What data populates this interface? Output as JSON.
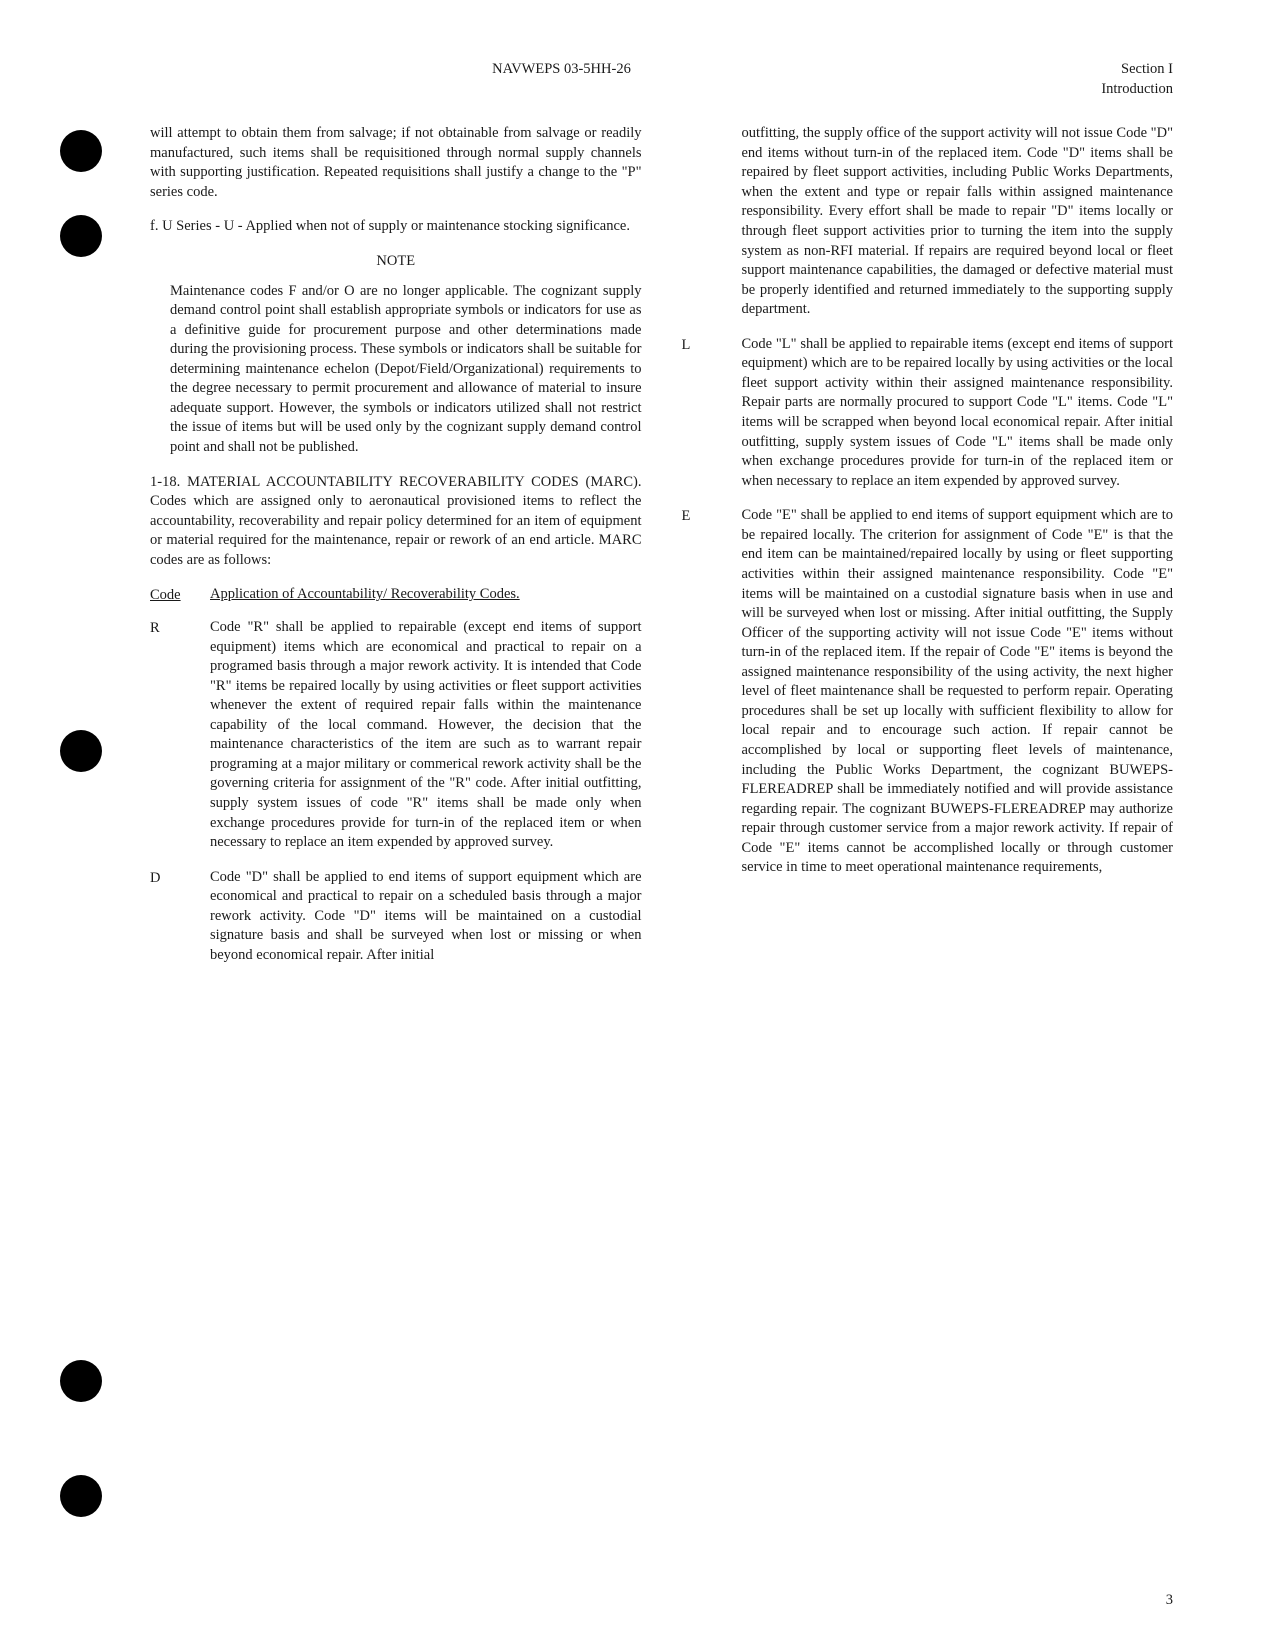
{
  "header": {
    "doc_id": "NAVWEPS 03-5HH-26",
    "section": "Section I",
    "subsection": "Introduction"
  },
  "left_col": {
    "para1": "will attempt to obtain them from salvage; if not obtainable from salvage or readily manufactured, such items shall be requisitioned through normal supply channels with supporting justification. Repeated requisitions shall justify a change to the \"P\" series code.",
    "para2": "f. U Series - U - Applied when not of supply or maintenance stocking significance.",
    "note_title": "NOTE",
    "note_body": "Maintenance codes F and/or O are no longer applicable. The cognizant supply demand control point shall establish appropriate symbols or indicators for use as a definitive guide for procurement purpose and other determinations made during the provisioning process. These symbols or indicators shall be suitable for determining maintenance echelon (Depot/Field/Organizational) requirements to the degree necessary to permit procurement and allowance of material to insure adequate support. However, the symbols or indicators utilized shall not restrict the issue of items but will be used only by the cognizant supply demand control point and shall not be published.",
    "para3": "1-18. MATERIAL ACCOUNTABILITY RECOVERABILITY CODES (MARC). Codes which are assigned only to aeronautical provisioned items to reflect the accountability, recoverability and repair policy determined for an item of equipment or material required for the maintenance, repair or rework of an end article. MARC codes are as follows:",
    "code_col_header": "Code",
    "app_col_header": "Application of Accountability/ Recoverability Codes.",
    "code_R": "R",
    "desc_R": "Code \"R\" shall be applied to repairable (except end items of support equipment) items which are economical and practical to repair on a programed basis through a major rework activity. It is intended that Code \"R\" items be repaired locally by using activities or fleet support activities whenever the extent of required repair falls within the maintenance capability of the local command. However, the decision that the maintenance characteristics of the item are such as to warrant repair programing at a major military or commerical rework activity shall be the governing criteria for assignment of the \"R\" code. After initial outfitting, supply system issues of code \"R\" items shall be made only when exchange procedures provide for turn-in of the replaced item or when necessary to replace an item expended by approved survey.",
    "code_D": "D",
    "desc_D": "Code \"D\" shall be applied to end items of support equipment which are economical and practical to repair on a scheduled basis through a major rework activity. Code \"D\" items will be maintained on a custodial signature basis and shall be surveyed when lost or missing or when beyond economical repair. After initial"
  },
  "right_col": {
    "desc_D_cont": "outfitting, the supply office of the support activity will not issue Code \"D\" end items without turn-in of the replaced item. Code \"D\" items shall be repaired by fleet support activities, including Public Works Departments, when the extent and type or repair falls within assigned maintenance responsibility. Every effort shall be made to repair \"D\" items locally or through fleet support activities prior to turning the item into the supply system as non-RFI material. If repairs are required beyond local or fleet support maintenance capabilities, the damaged or defective material must be properly identified and returned immediately to the supporting supply department.",
    "code_L": "L",
    "desc_L": "Code \"L\" shall be applied to repairable items (except end items of support equipment) which are to be repaired locally by using activities or the local fleet support activity within their assigned maintenance responsibility. Repair parts are normally procured to support Code \"L\" items. Code \"L\" items will be scrapped when beyond local economical repair. After initial outfitting, supply system issues of Code \"L\" items shall be made only when exchange procedures provide for turn-in of the replaced item or when necessary to replace an item expended by approved survey.",
    "code_E": "E",
    "desc_E": "Code \"E\" shall be applied to end items of support equipment which are to be repaired locally. The criterion for assignment of Code \"E\" is that the end item can be maintained/repaired locally by using or fleet supporting activities within their assigned maintenance responsibility. Code \"E\" items will be maintained on a custodial signature basis when in use and will be surveyed when lost or missing. After initial outfitting, the Supply Officer of the supporting activity will not issue Code \"E\" items without turn-in of the replaced item. If the repair of Code \"E\" items is beyond the assigned maintenance responsibility of the using activity, the next higher level of fleet maintenance shall be requested to perform repair. Operating procedures shall be set up locally with sufficient flexibility to allow for local repair and to encourage such action. If repair cannot be accomplished by local or supporting fleet levels of maintenance, including the Public Works Department, the cognizant BUWEPS-FLEREADREP shall be immediately notified and will provide assistance regarding repair. The cognizant BUWEPS-FLEREADREP may authorize repair through customer service from a major rework activity. If repair of Code \"E\" items cannot be accomplished locally or through customer service in time to meet operational maintenance requirements,"
  },
  "page_number": "3"
}
